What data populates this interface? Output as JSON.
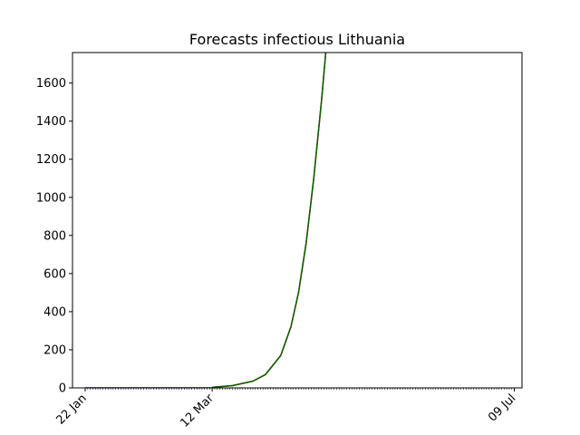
{
  "chart_data": {
    "type": "line",
    "title": "Forecasts infectious Lithuania",
    "xlabel": "",
    "ylabel": "",
    "x_range": [
      "2020-01-17",
      "2020-07-12"
    ],
    "ylim": [
      0,
      1760
    ],
    "y_ticks": [
      0,
      200,
      400,
      600,
      800,
      1000,
      1200,
      1400,
      1600
    ],
    "x_ticks": [
      {
        "date": "2020-01-22",
        "label": "22 Jan"
      },
      {
        "date": "2020-03-12",
        "label": "12 Mar"
      },
      {
        "date": "2020-07-09",
        "label": "09 Jul"
      }
    ],
    "minor_tick_range": [
      "2020-01-22",
      "2020-07-09"
    ],
    "grid": false,
    "series": [
      {
        "color": "#00008b",
        "points": [
          {
            "date": "2020-01-22",
            "value": 0
          },
          {
            "date": "2020-02-10",
            "value": 0
          },
          {
            "date": "2020-03-01",
            "value": 0
          },
          {
            "date": "2020-03-12",
            "value": 0
          }
        ]
      },
      {
        "color": "#ff0000",
        "points": [
          {
            "date": "2020-03-12",
            "value": 3
          },
          {
            "date": "2020-03-20",
            "value": 12
          },
          {
            "date": "2020-03-28",
            "value": 35
          },
          {
            "date": "2020-04-02",
            "value": 70
          },
          {
            "date": "2020-04-08",
            "value": 170
          },
          {
            "date": "2020-04-12",
            "value": 320
          },
          {
            "date": "2020-04-15",
            "value": 500
          },
          {
            "date": "2020-04-18",
            "value": 760
          },
          {
            "date": "2020-04-21",
            "value": 1100
          },
          {
            "date": "2020-04-24",
            "value": 1500
          },
          {
            "date": "2020-04-26",
            "value": 1800
          }
        ]
      },
      {
        "color": "#006400",
        "points": [
          {
            "date": "2020-03-12",
            "value": 3
          },
          {
            "date": "2020-03-20",
            "value": 12
          },
          {
            "date": "2020-03-28",
            "value": 35
          },
          {
            "date": "2020-04-02",
            "value": 70
          },
          {
            "date": "2020-04-08",
            "value": 170
          },
          {
            "date": "2020-04-12",
            "value": 320
          },
          {
            "date": "2020-04-15",
            "value": 500
          },
          {
            "date": "2020-04-18",
            "value": 760
          },
          {
            "date": "2020-04-21",
            "value": 1100
          },
          {
            "date": "2020-04-24",
            "value": 1500
          },
          {
            "date": "2020-04-26",
            "value": 1800
          }
        ]
      }
    ]
  }
}
